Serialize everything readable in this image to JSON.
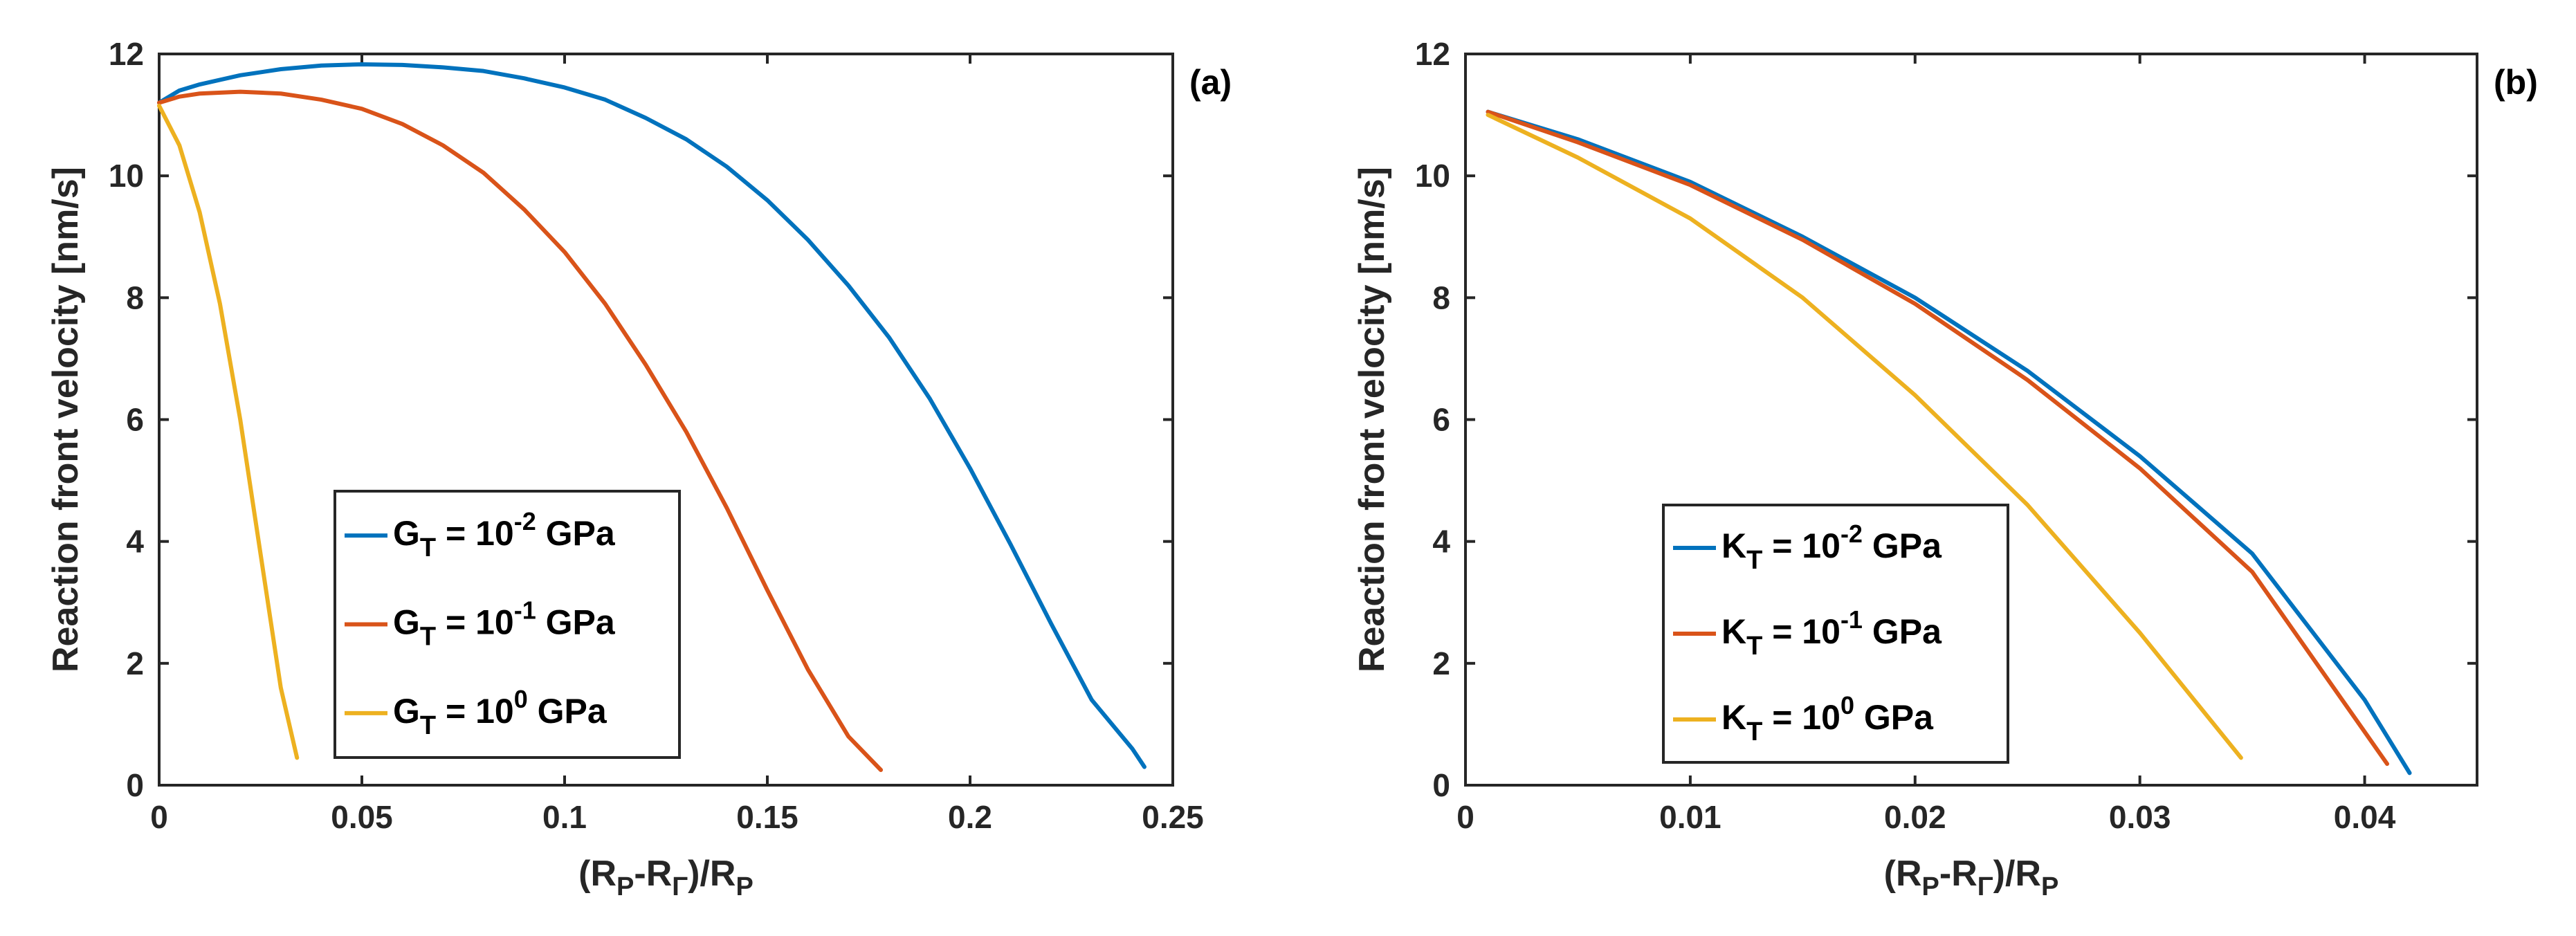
{
  "chart_data": [
    {
      "type": "line",
      "panel_label": "(a)",
      "xlabel": {
        "main": "(R",
        "sub1": "P",
        "mid": "-R",
        "sub2": "Γ",
        "post": ")/R",
        "sub3": "P"
      },
      "ylabel": "Reaction front velocity [nm/s]",
      "xlim": [
        0,
        0.25
      ],
      "ylim": [
        0,
        12
      ],
      "xticks": [
        0,
        0.05,
        0.1,
        0.15,
        0.2,
        0.25
      ],
      "xtick_labels": [
        "0",
        "0.05",
        "0.1",
        "0.15",
        "0.2",
        "0.25"
      ],
      "yticks": [
        0,
        2,
        4,
        6,
        8,
        10,
        12
      ],
      "ytick_labels": [
        "0",
        "2",
        "4",
        "6",
        "8",
        "10",
        "12"
      ],
      "legend_position": "lower-middle",
      "series": [
        {
          "name": "G_T = 10^-2 GPa",
          "legend": {
            "sym": "G",
            "sub": "T",
            "pre": " = 10",
            "exp": "-2",
            "post": " GPa"
          },
          "color": "#0072BD",
          "x": [
            0,
            0.005,
            0.01,
            0.02,
            0.03,
            0.04,
            0.05,
            0.06,
            0.07,
            0.08,
            0.09,
            0.1,
            0.11,
            0.12,
            0.13,
            0.14,
            0.15,
            0.16,
            0.17,
            0.18,
            0.19,
            0.2,
            0.21,
            0.22,
            0.23,
            0.24,
            0.243
          ],
          "y": [
            11.2,
            11.4,
            11.5,
            11.65,
            11.75,
            11.81,
            11.83,
            11.82,
            11.78,
            11.72,
            11.6,
            11.45,
            11.25,
            10.95,
            10.6,
            10.15,
            9.6,
            8.95,
            8.2,
            7.35,
            6.35,
            5.2,
            3.95,
            2.65,
            1.4,
            0.6,
            0.3
          ]
        },
        {
          "name": "G_T = 10^-1 GPa",
          "legend": {
            "sym": "G",
            "sub": "T",
            "pre": " = 10",
            "exp": "-1",
            "post": " GPa"
          },
          "color": "#D95319",
          "x": [
            0,
            0.005,
            0.01,
            0.02,
            0.03,
            0.04,
            0.05,
            0.06,
            0.07,
            0.08,
            0.09,
            0.1,
            0.11,
            0.12,
            0.13,
            0.14,
            0.15,
            0.16,
            0.17,
            0.178
          ],
          "y": [
            11.2,
            11.3,
            11.35,
            11.38,
            11.35,
            11.25,
            11.1,
            10.85,
            10.5,
            10.05,
            9.45,
            8.75,
            7.9,
            6.9,
            5.8,
            4.55,
            3.2,
            1.9,
            0.8,
            0.25
          ]
        },
        {
          "name": "G_T = 10^0 GPa",
          "legend": {
            "sym": "G",
            "sub": "T",
            "pre": " = 10",
            "exp": "0",
            "post": " GPa"
          },
          "color": "#EDB120",
          "x": [
            0,
            0.005,
            0.01,
            0.015,
            0.02,
            0.025,
            0.03,
            0.034
          ],
          "y": [
            11.15,
            10.5,
            9.4,
            7.9,
            6.0,
            3.8,
            1.6,
            0.45
          ]
        }
      ]
    },
    {
      "type": "line",
      "panel_label": "(b)",
      "xlabel": {
        "main": "(R",
        "sub1": "P",
        "mid": "-R",
        "sub2": "Γ",
        "post": ")/R",
        "sub3": "P"
      },
      "ylabel": "Reaction front velocity [nm/s]",
      "xlim": [
        0,
        0.045
      ],
      "ylim": [
        0,
        12
      ],
      "xticks": [
        0,
        0.01,
        0.02,
        0.03,
        0.04
      ],
      "xtick_labels": [
        "0",
        "0.01",
        "0.02",
        "0.03",
        "0.04"
      ],
      "yticks": [
        0,
        2,
        4,
        6,
        8,
        10,
        12
      ],
      "ytick_labels": [
        "0",
        "2",
        "4",
        "6",
        "8",
        "10",
        "12"
      ],
      "legend_position": "lower-left",
      "series": [
        {
          "name": "K_T = 10^-2 GPa",
          "legend": {
            "sym": "K",
            "sub": "T",
            "pre": " = 10",
            "exp": "-2",
            "post": " GPa"
          },
          "color": "#0072BD",
          "x": [
            0.001,
            0.005,
            0.01,
            0.015,
            0.02,
            0.025,
            0.03,
            0.035,
            0.04,
            0.042
          ],
          "y": [
            11.05,
            10.6,
            9.9,
            9.0,
            8.0,
            6.8,
            5.4,
            3.8,
            1.4,
            0.2
          ]
        },
        {
          "name": "K_T = 10^-1 GPa",
          "legend": {
            "sym": "K",
            "sub": "T",
            "pre": " = 10",
            "exp": "-1",
            "post": " GPa"
          },
          "color": "#D95319",
          "x": [
            0.001,
            0.005,
            0.01,
            0.015,
            0.02,
            0.025,
            0.03,
            0.035,
            0.041
          ],
          "y": [
            11.05,
            10.55,
            9.85,
            8.95,
            7.9,
            6.65,
            5.2,
            3.5,
            0.35
          ]
        },
        {
          "name": "K_T = 10^0 GPa",
          "legend": {
            "sym": "K",
            "sub": "T",
            "pre": " = 10",
            "exp": "0",
            "post": " GPa"
          },
          "color": "#EDB120",
          "x": [
            0.001,
            0.005,
            0.01,
            0.015,
            0.02,
            0.025,
            0.03,
            0.0345
          ],
          "y": [
            11.0,
            10.3,
            9.3,
            8.0,
            6.4,
            4.6,
            2.5,
            0.45
          ]
        }
      ]
    }
  ]
}
